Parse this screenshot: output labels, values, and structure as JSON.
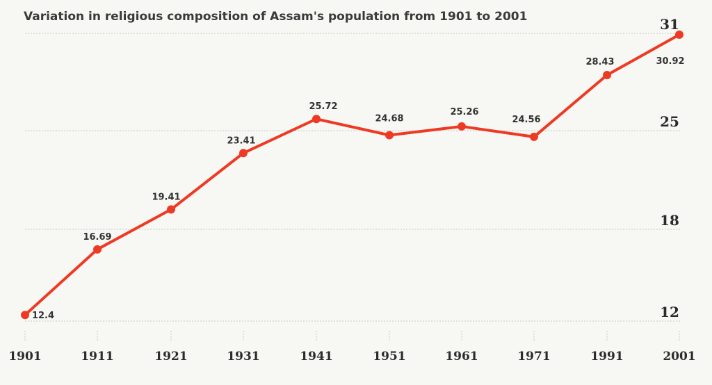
{
  "chart_data": {
    "type": "line",
    "title": "Variation in religious composition of Assam's population from 1901 to 2001",
    "xlabel": "",
    "ylabel": "",
    "categories": [
      "1901",
      "1911",
      "1921",
      "1931",
      "1941",
      "1951",
      "1961",
      "1971",
      "1991",
      "2001"
    ],
    "series": [
      {
        "values": [
          12.4,
          16.69,
          19.41,
          23.41,
          25.72,
          24.68,
          25.26,
          24.56,
          28.43,
          30.92
        ]
      }
    ],
    "data_labels": [
      "12.4",
      "16.69",
      "19.41",
      "23.41",
      "25.72",
      "24.68",
      "25.26",
      "24.56",
      "28.43",
      "30.92"
    ],
    "yticks": [
      "12",
      "18",
      "25",
      "31"
    ],
    "ytick_values": [
      12,
      18,
      25,
      31
    ],
    "y_axis_side": "right",
    "grid": true,
    "line_color": "#ee3a24",
    "marker_color": "#ee3a24"
  }
}
